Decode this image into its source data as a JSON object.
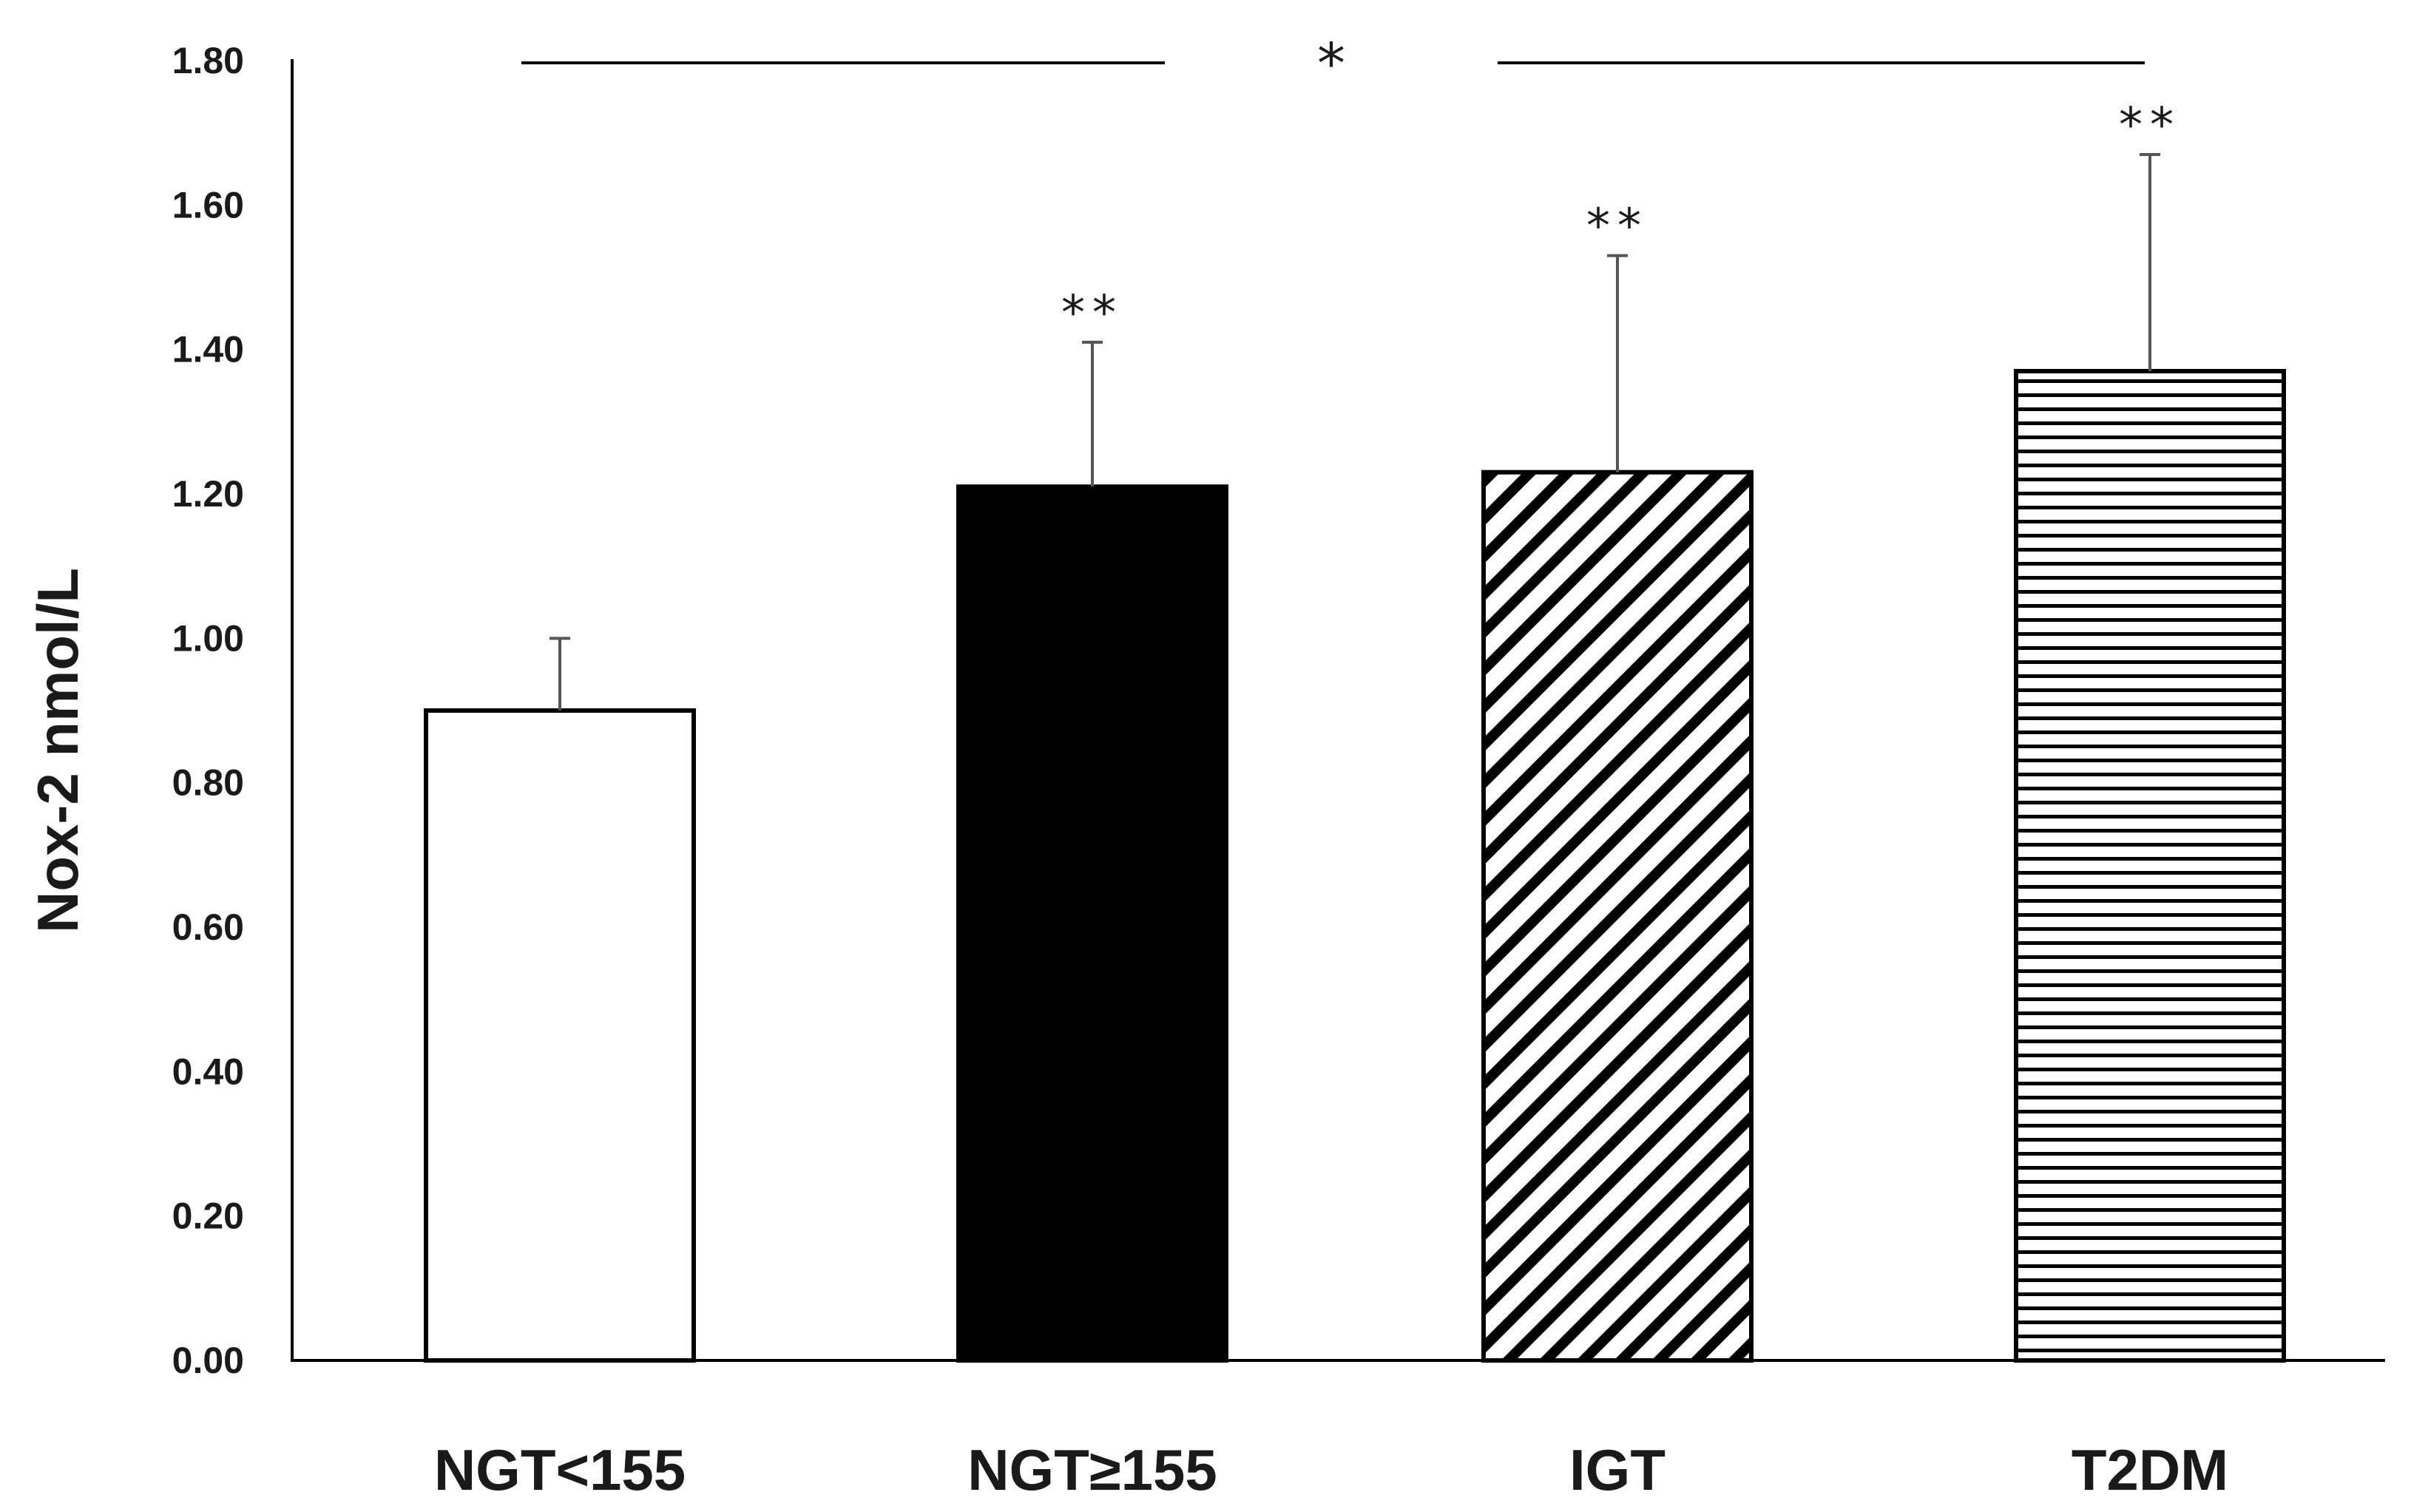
{
  "chart_data": {
    "type": "bar",
    "title": "",
    "xlabel": "",
    "ylabel": "Nox-2 nmol/L",
    "ylim": [
      0,
      1.8
    ],
    "yticks": [
      "0.00",
      "0.20",
      "0.40",
      "0.60",
      "0.80",
      "1.00",
      "1.20",
      "1.40",
      "1.60",
      "1.80"
    ],
    "categories": [
      "NGT<155",
      "NGT≥155",
      "IGT",
      "T2DM"
    ],
    "values": [
      0.9,
      1.21,
      1.23,
      1.37
    ],
    "errors": [
      0.1,
      0.2,
      0.3,
      0.3
    ],
    "fills": [
      "white",
      "solid-black",
      "diagonal-hatch",
      "horizontal-hatch"
    ],
    "annotations": [
      "",
      "**",
      "**",
      "**"
    ],
    "comparison": {
      "label": "*",
      "from": "NGT<155",
      "to": "T2DM"
    },
    "grid": false,
    "colors": {
      "bar_stroke": "#000000",
      "text": "#1a1a1a",
      "solid_fill": "#000000"
    }
  }
}
